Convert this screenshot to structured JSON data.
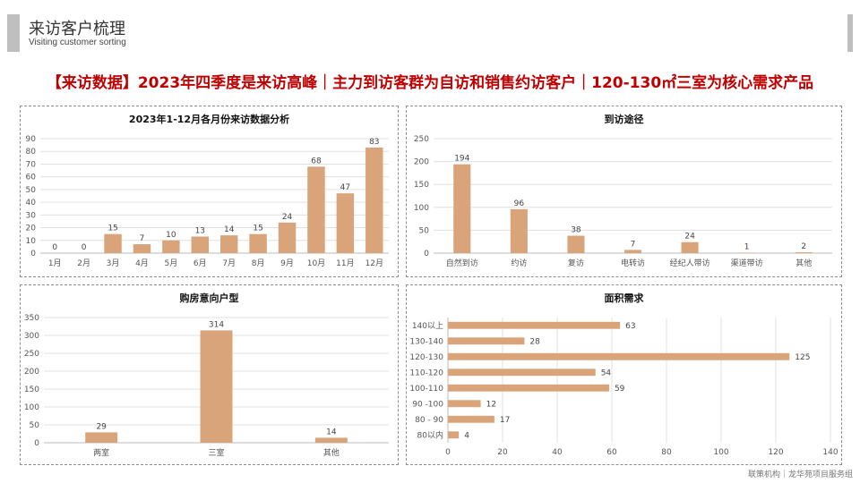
{
  "header": {
    "title": "来访客户梳理",
    "subtitle": "Visiting customer sorting",
    "headline": "【来访数据】2023年四季度是来访高峰｜主力到访客群为自访和销售约访客户｜120-130㎡三室为核心需求产品"
  },
  "footer": {
    "text": "联策机构｜龙华苑项目服务组"
  },
  "colors": {
    "bar": "#d9a47a",
    "headline": "#c00000",
    "grid": "#e0e0e0"
  },
  "chart_data": [
    {
      "id": "monthly",
      "type": "bar",
      "title": "2023年1-12月各月份来访数据分析",
      "categories": [
        "1月",
        "2月",
        "3月",
        "4月",
        "5月",
        "6月",
        "7月",
        "8月",
        "9月",
        "10月",
        "11月",
        "12月"
      ],
      "values": [
        0,
        0,
        15,
        7,
        10,
        13,
        14,
        15,
        24,
        68,
        47,
        83
      ],
      "ylim": [
        0,
        90
      ],
      "yticks": [
        0,
        10,
        20,
        30,
        40,
        50,
        60,
        70,
        80,
        90
      ],
      "grid": true,
      "xlabel": "",
      "ylabel": ""
    },
    {
      "id": "channel",
      "type": "bar",
      "title": "到访途径",
      "categories": [
        "自然到访",
        "约访",
        "复访",
        "电转访",
        "经纪人带访",
        "渠道带访",
        "其他"
      ],
      "values": [
        194,
        96,
        38,
        7,
        24,
        1,
        2
      ],
      "ylim": [
        0,
        250
      ],
      "yticks": [
        0,
        50,
        100,
        150,
        200,
        250
      ],
      "grid": true,
      "xlabel": "",
      "ylabel": ""
    },
    {
      "id": "layout",
      "type": "bar",
      "title": "购房意向户型",
      "categories": [
        "两室",
        "三室",
        "其他"
      ],
      "values": [
        29,
        314,
        14
      ],
      "ylim": [
        0,
        350
      ],
      "yticks": [
        0,
        50,
        100,
        150,
        200,
        250,
        300,
        350
      ],
      "grid": true,
      "xlabel": "",
      "ylabel": ""
    },
    {
      "id": "area",
      "type": "bar",
      "orientation": "horizontal",
      "title": "面积需求",
      "categories": [
        "140以上",
        "130-140",
        "120-130",
        "110-120",
        "100-110",
        "90 -100",
        "80 - 90",
        "80以内"
      ],
      "values": [
        63,
        28,
        125,
        54,
        59,
        12,
        17,
        4
      ],
      "xlim": [
        0,
        140
      ],
      "xticks": [
        0,
        20,
        40,
        60,
        80,
        100,
        120,
        140
      ],
      "grid": true,
      "xlabel": "",
      "ylabel": ""
    }
  ]
}
